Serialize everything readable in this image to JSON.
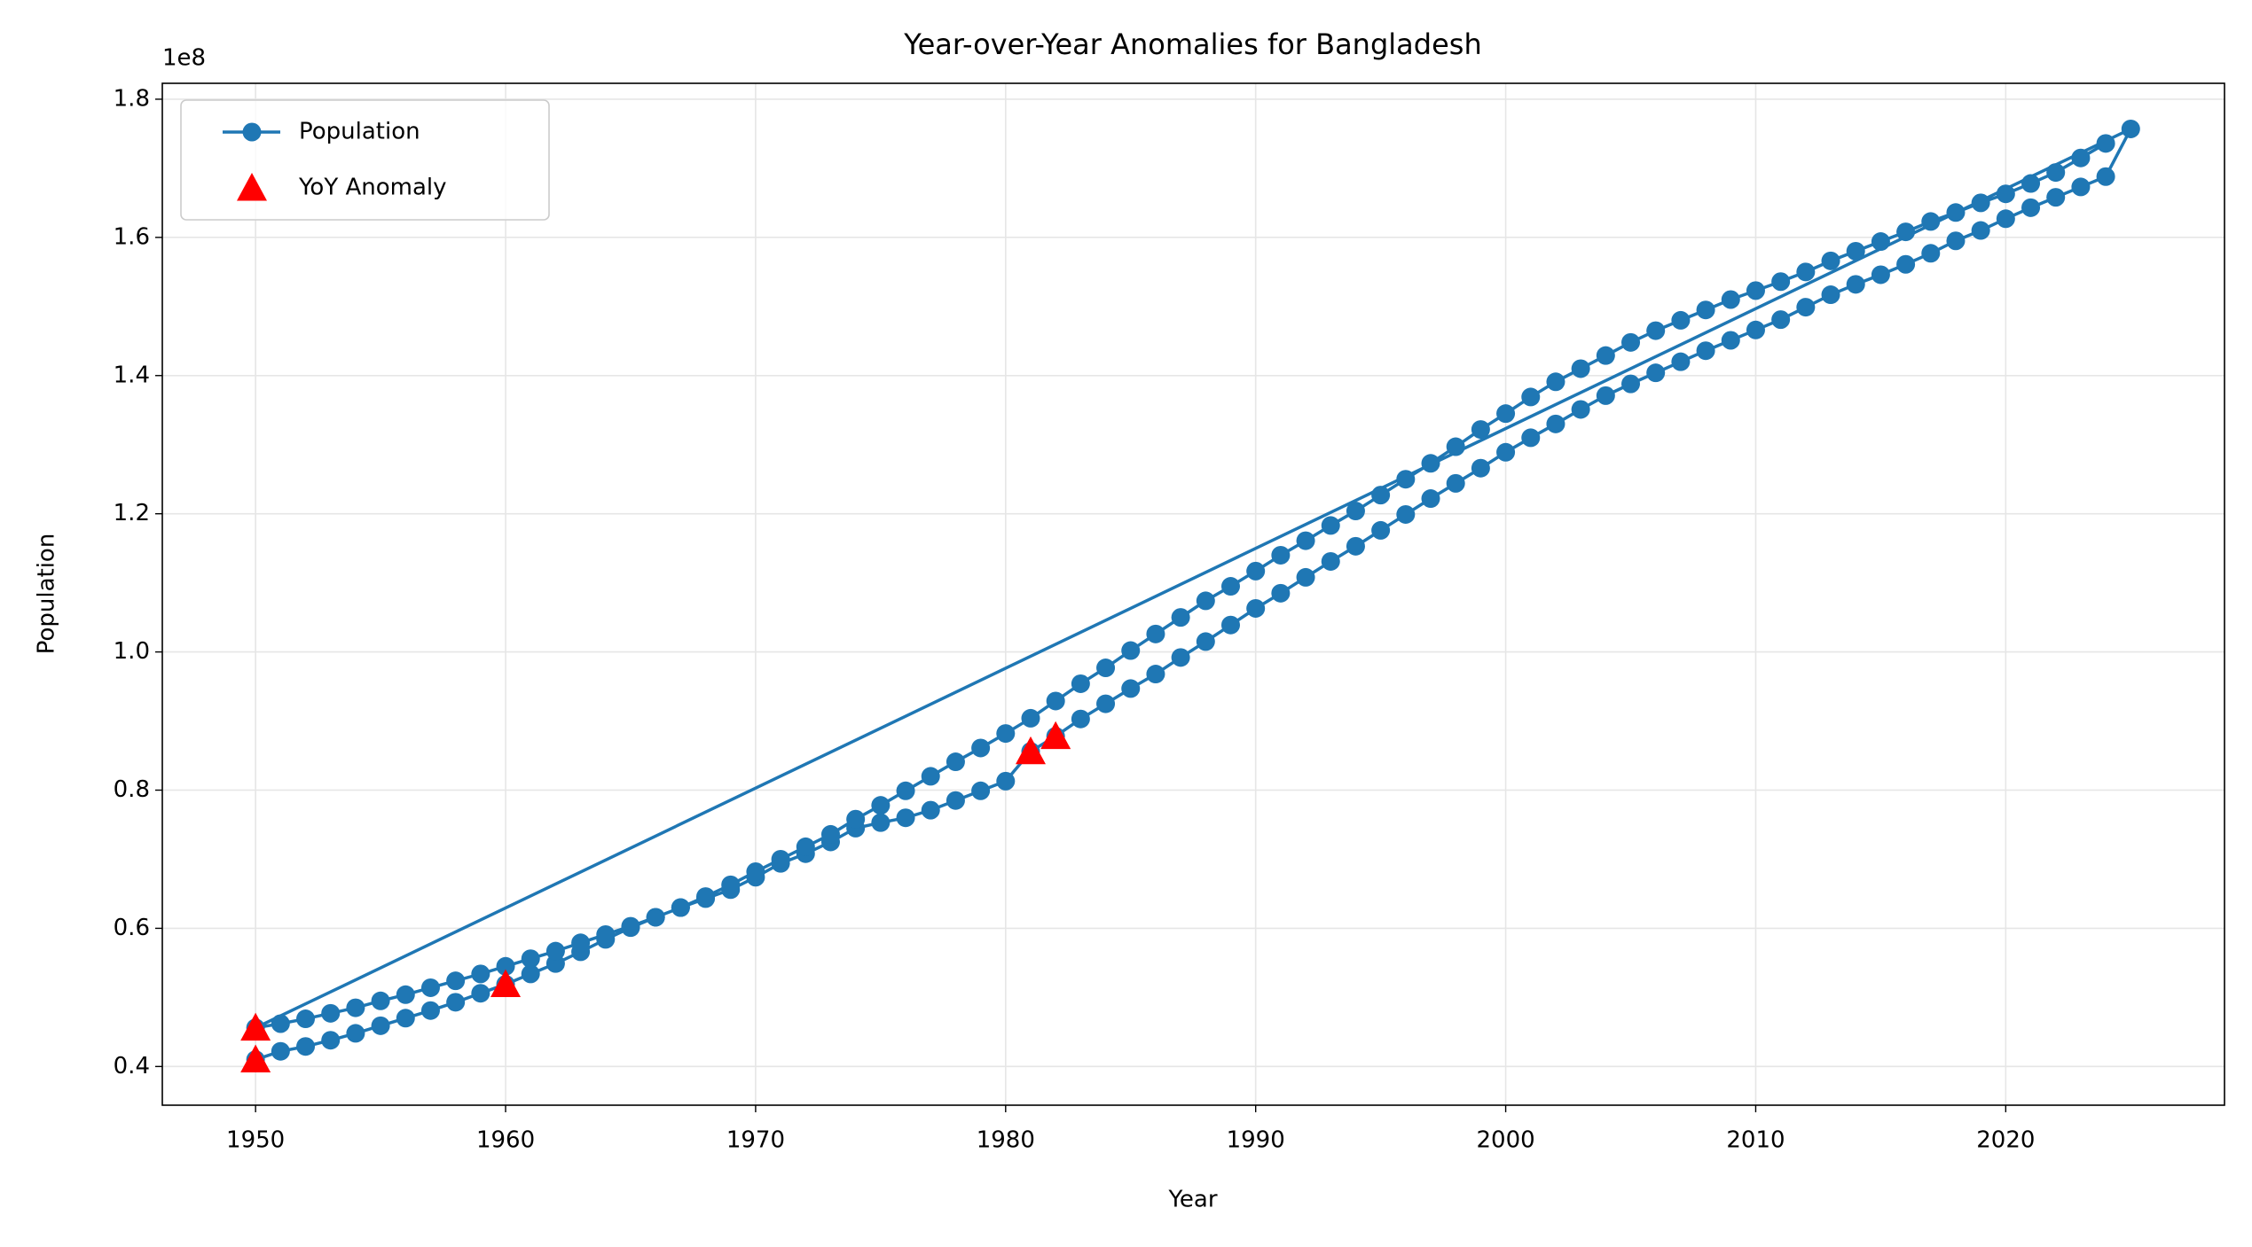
{
  "chart_data": {
    "type": "line",
    "title": "Year-over-Year Anomalies for Bangladesh",
    "xlabel": "Year",
    "ylabel": "Population",
    "y_offset_label": "1e8",
    "series": [
      {
        "name": "Population",
        "type": "line",
        "color": "#1f77b4",
        "marker": "circle",
        "x": [
          1950,
          1951,
          1952,
          1953,
          1954,
          1955,
          1956,
          1957,
          1958,
          1959,
          1960,
          1961,
          1962,
          1963,
          1964,
          1965,
          1966,
          1967,
          1968,
          1969,
          1970,
          1971,
          1972,
          1973,
          1974,
          1975,
          1976,
          1977,
          1978,
          1979,
          1980,
          1981,
          1982,
          1983,
          1984,
          1985,
          1986,
          1987,
          1988,
          1989,
          1990,
          1991,
          1992,
          1993,
          1994,
          1995,
          1996,
          1997,
          1998,
          1999,
          2000,
          2001,
          2002,
          2003,
          2004,
          2005,
          2006,
          2007,
          2008,
          2009,
          2010,
          2011,
          2012,
          2013,
          2014,
          2015,
          2016,
          2017,
          2018,
          2019,
          2020,
          2021,
          2022,
          2023,
          2024,
          2025,
          1950,
          1951,
          1952,
          1953,
          1954,
          1955,
          1956,
          1957,
          1958,
          1959,
          1960,
          1961,
          1962,
          1963,
          1964,
          1965,
          1966,
          1967,
          1968,
          1969,
          1970,
          1971,
          1972,
          1973,
          1974,
          1975,
          1976,
          1977,
          1978,
          1979,
          1980,
          1981,
          1982,
          1983,
          1984,
          1985,
          1986,
          1987,
          1988,
          1989,
          1990,
          1991,
          1992,
          1993,
          1994,
          1995,
          1996,
          1997,
          1998,
          1999,
          2000,
          2001,
          2002,
          2003,
          2004,
          2005,
          2006,
          2007,
          2008,
          2009,
          2010,
          2011,
          2012,
          2013,
          2014,
          2015,
          2016,
          2017,
          2018,
          2019,
          2020,
          2021,
          2022,
          2023,
          2024
        ],
        "values": [
          0.41,
          0.422,
          0.429,
          0.438,
          0.448,
          0.459,
          0.47,
          0.481,
          0.493,
          0.506,
          0.519,
          0.534,
          0.549,
          0.566,
          0.584,
          0.601,
          0.616,
          0.63,
          0.643,
          0.656,
          0.674,
          0.694,
          0.708,
          0.725,
          0.745,
          0.753,
          0.76,
          0.771,
          0.785,
          0.799,
          0.813,
          0.856,
          0.878,
          0.903,
          0.925,
          0.947,
          0.968,
          0.992,
          1.015,
          1.039,
          1.063,
          1.085,
          1.108,
          1.131,
          1.153,
          1.176,
          1.199,
          1.222,
          1.244,
          1.266,
          1.289,
          1.31,
          1.33,
          1.351,
          1.371,
          1.388,
          1.404,
          1.42,
          1.436,
          1.451,
          1.466,
          1.481,
          1.499,
          1.517,
          1.532,
          1.546,
          1.561,
          1.577,
          1.595,
          1.61,
          1.627,
          1.643,
          1.658,
          1.673,
          1.688,
          1.757,
          0.456,
          0.462,
          0.469,
          0.477,
          0.485,
          0.495,
          0.504,
          0.514,
          0.524,
          0.534,
          0.545,
          0.556,
          0.567,
          0.579,
          0.591,
          0.603,
          0.616,
          0.63,
          0.646,
          0.663,
          0.682,
          0.7,
          0.718,
          0.736,
          0.758,
          0.778,
          0.799,
          0.82,
          0.841,
          0.861,
          0.882,
          0.904,
          0.929,
          0.954,
          0.977,
          1.002,
          1.026,
          1.05,
          1.074,
          1.095,
          1.117,
          1.14,
          1.161,
          1.183,
          1.204,
          1.227,
          1.25,
          1.273,
          1.297,
          1.322,
          1.345,
          1.369,
          1.391,
          1.41,
          1.429,
          1.448,
          1.465,
          1.48,
          1.495,
          1.51,
          1.523,
          1.536,
          1.55,
          1.566,
          1.58,
          1.594,
          1.608,
          1.623,
          1.636,
          1.65,
          1.663,
          1.678,
          1.694,
          1.715,
          1.736
        ]
      },
      {
        "name": "YoY Anomaly",
        "type": "scatter",
        "color": "red",
        "marker": "triangle",
        "x": [
          1950,
          1950,
          1960,
          1981,
          1982
        ],
        "values": [
          0.456,
          0.41,
          0.519,
          0.856,
          0.878
        ]
      }
    ],
    "xlim": [
      1946.27,
      2028.75
    ],
    "ylim": [
      0.344,
      1.823
    ],
    "xticks": [
      1950,
      1960,
      1970,
      1980,
      1990,
      2000,
      2010,
      2020
    ],
    "yticks": [
      0.4,
      0.6,
      0.8,
      {
        "value": 1.0,
        "label": "1.0"
      },
      1.2,
      1.4,
      1.6,
      1.8
    ],
    "grid": true,
    "legend": "upper left"
  }
}
